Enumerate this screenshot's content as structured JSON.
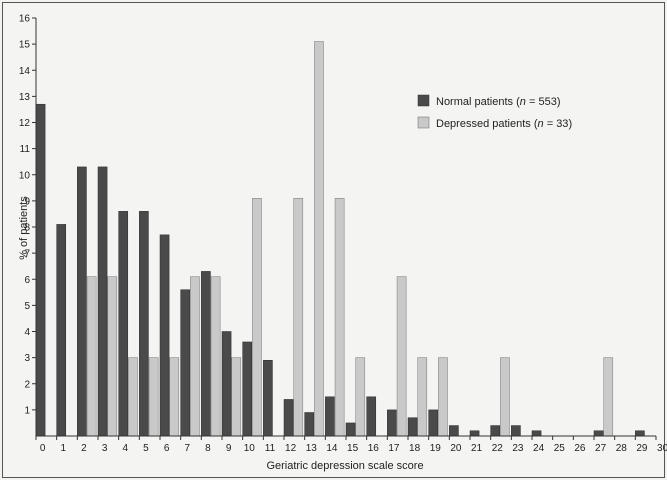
{
  "chart_data": {
    "type": "bar",
    "xlabel": "Geriatric depression scale score",
    "ylabel": "% of patients",
    "ylim": [
      0,
      16
    ],
    "xlim": [
      0,
      30
    ],
    "yticks": [
      1,
      2,
      3,
      4,
      5,
      6,
      7,
      8,
      9,
      10,
      11,
      12,
      13,
      14,
      15,
      16
    ],
    "xticks": [
      0,
      1,
      2,
      3,
      4,
      5,
      6,
      7,
      8,
      9,
      10,
      11,
      12,
      13,
      14,
      15,
      16,
      17,
      18,
      19,
      20,
      21,
      22,
      23,
      24,
      25,
      26,
      27,
      28,
      29,
      30
    ],
    "legend_position": "upper-right",
    "series": [
      {
        "name": "Normal patients",
        "n_label": "553",
        "color": "#4a4a4a",
        "values": [
          12.7,
          8.1,
          10.3,
          10.3,
          8.6,
          8.6,
          7.7,
          5.6,
          6.3,
          4.0,
          3.6,
          2.9,
          1.4,
          0.9,
          1.5,
          0.5,
          1.5,
          1.0,
          0.7,
          1.0,
          0.4,
          0.2,
          0.4,
          0.4,
          0.2,
          0,
          0,
          0.2,
          0,
          0.2
        ]
      },
      {
        "name": "Depressed patients",
        "n_label": "33",
        "color": "#c9c9c9",
        "values": [
          0,
          0,
          6.1,
          6.1,
          3.0,
          3.0,
          3.0,
          6.1,
          6.1,
          3.0,
          9.1,
          0,
          9.1,
          15.1,
          9.1,
          3.0,
          0,
          6.1,
          3.0,
          3.0,
          0,
          0,
          3.0,
          0,
          0,
          0,
          0,
          3.0,
          0,
          0
        ]
      }
    ]
  }
}
